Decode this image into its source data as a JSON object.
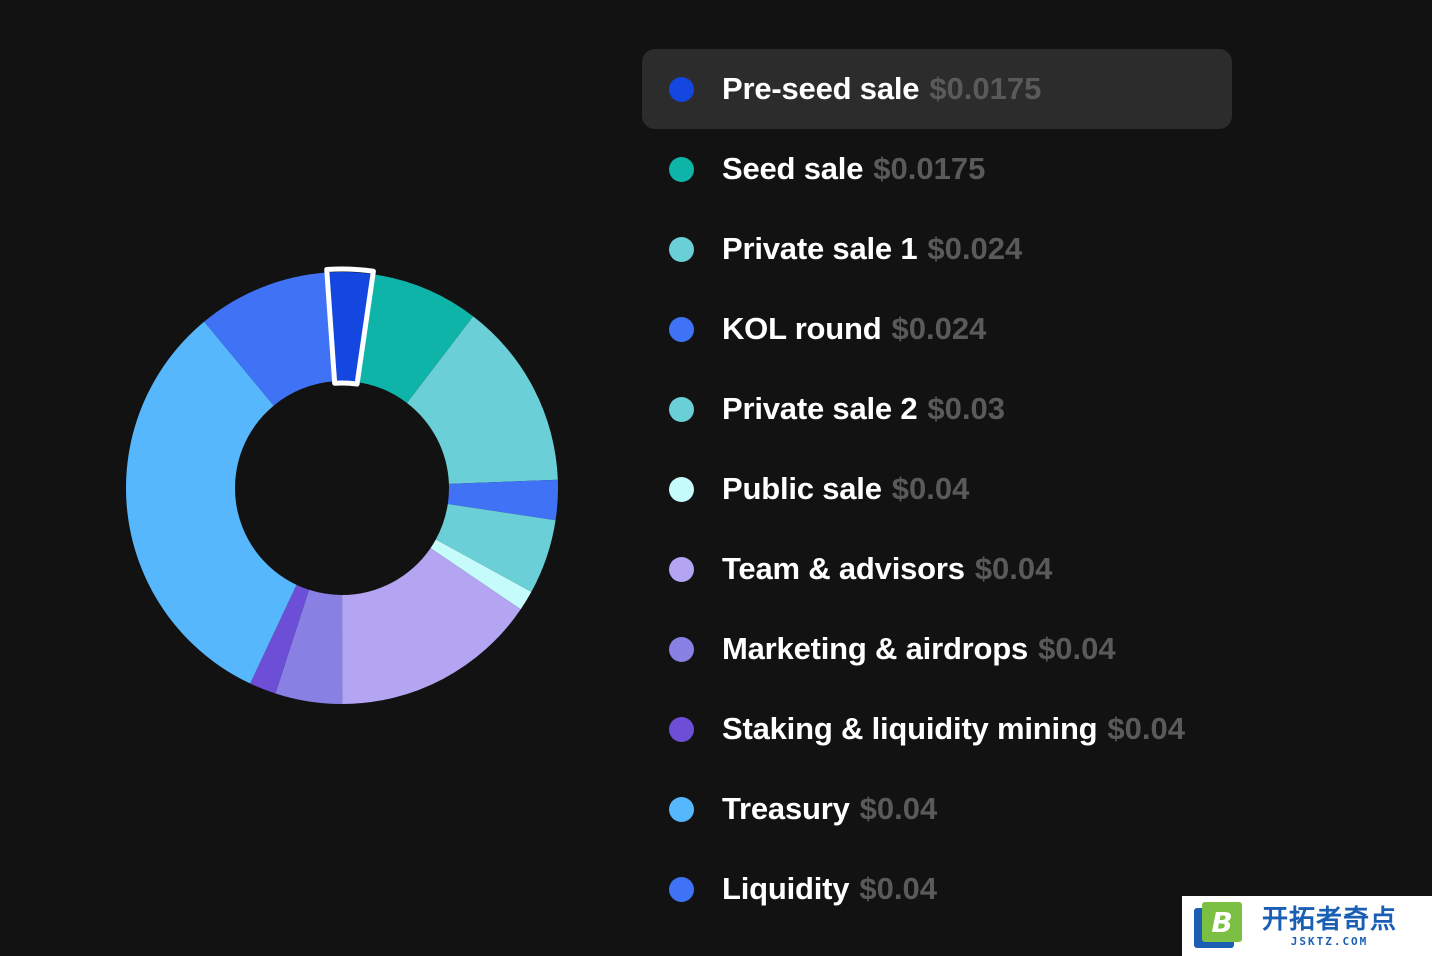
{
  "chart_data": {
    "type": "pie",
    "donut": true,
    "highlighted_slice": "Pre-seed sale",
    "slices": [
      {
        "label": "Pre-seed sale",
        "price": "$0.0175",
        "value": 3.4,
        "color": "#1447e0"
      },
      {
        "label": "Seed sale",
        "price": "$0.0175",
        "value": 8.1,
        "color": "#0fb4a8"
      },
      {
        "label": "Private sale 1",
        "price": "$0.024",
        "value": 14.0,
        "color": "#6bcfd7"
      },
      {
        "label": "KOL round",
        "price": "$0.024",
        "value": 3.0,
        "color": "#3f72f4"
      },
      {
        "label": "Private sale 2",
        "price": "$0.03",
        "value": 5.6,
        "color": "#6bcfd7"
      },
      {
        "label": "Public sale",
        "price": "$0.04",
        "value": 1.5,
        "color": "#c6fbfc"
      },
      {
        "label": "Team & advisors",
        "price": "$0.04",
        "value": 15.5,
        "color": "#b3a5f2"
      },
      {
        "label": "Marketing & airdrops",
        "price": "$0.04",
        "value": 5.0,
        "color": "#8880e2"
      },
      {
        "label": "Staking & liquidity mining",
        "price": "$0.04",
        "value": 2.0,
        "color": "#6c4fd6"
      },
      {
        "label": "Treasury",
        "price": "$0.04",
        "value": 32.0,
        "color": "#57b7fd"
      },
      {
        "label": "Liquidity",
        "price": "$0.04",
        "value": 9.9,
        "color": "#3f72f4"
      }
    ]
  },
  "watermark": {
    "logo_letter": "B",
    "text_cn": "开拓者奇点",
    "text_en": "JSKTZ.COM"
  }
}
